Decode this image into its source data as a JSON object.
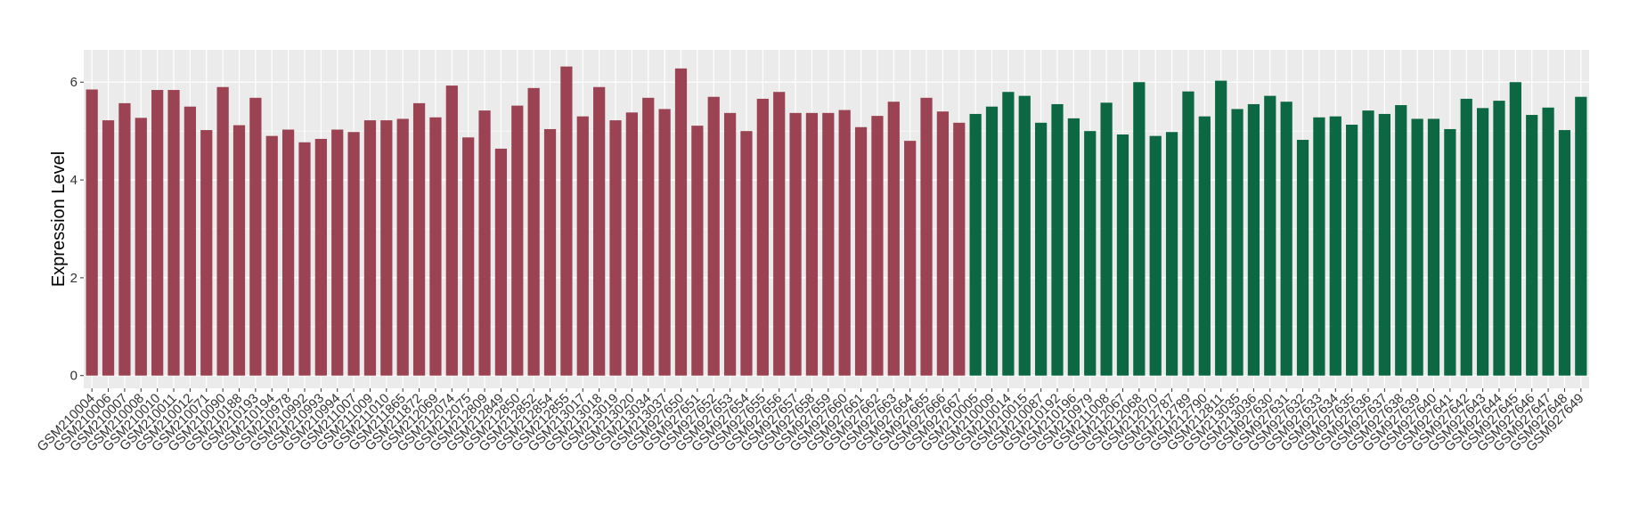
{
  "chart_data": {
    "type": "bar",
    "y_label": "Expression Level",
    "categories": [
      "GSM210004",
      "GSM210006",
      "GSM210007",
      "GSM210008",
      "GSM210010",
      "GSM210011",
      "GSM210012",
      "GSM210071",
      "GSM210090",
      "GSM210188",
      "GSM210193",
      "GSM210194",
      "GSM210978",
      "GSM210992",
      "GSM210993",
      "GSM210994",
      "GSM211007",
      "GSM211009",
      "GSM211010",
      "GSM211865",
      "GSM211872",
      "GSM212069",
      "GSM212074",
      "GSM212075",
      "GSM212809",
      "GSM212849",
      "GSM212850",
      "GSM212852",
      "GSM212854",
      "GSM212855",
      "GSM213017",
      "GSM213018",
      "GSM213019",
      "GSM213020",
      "GSM213034",
      "GSM213037",
      "GSM927650",
      "GSM927651",
      "GSM927652",
      "GSM927653",
      "GSM927654",
      "GSM927655",
      "GSM927656",
      "GSM927657",
      "GSM927658",
      "GSM927659",
      "GSM927660",
      "GSM927661",
      "GSM927662",
      "GSM927663",
      "GSM927664",
      "GSM927665",
      "GSM927666",
      "GSM927667",
      "GSM210005",
      "GSM210009",
      "GSM210014",
      "GSM210015",
      "GSM210087",
      "GSM210192",
      "GSM210196",
      "GSM210979",
      "GSM211008",
      "GSM212067",
      "GSM212068",
      "GSM212070",
      "GSM212787",
      "GSM212789",
      "GSM212790",
      "GSM212811",
      "GSM213035",
      "GSM213036",
      "GSM927630",
      "GSM927631",
      "GSM927632",
      "GSM927633",
      "GSM927634",
      "GSM927635",
      "GSM927636",
      "GSM927637",
      "GSM927638",
      "GSM927639",
      "GSM927640",
      "GSM927641",
      "GSM927642",
      "GSM927643",
      "GSM927644",
      "GSM927645",
      "GSM927646",
      "GSM927647",
      "GSM927648",
      "GSM927649"
    ],
    "values": [
      5.85,
      5.22,
      5.57,
      5.27,
      5.84,
      5.84,
      5.5,
      5.02,
      5.9,
      5.12,
      5.68,
      4.9,
      5.03,
      4.77,
      4.84,
      5.03,
      4.98,
      5.22,
      5.22,
      5.25,
      5.57,
      5.28,
      5.93,
      4.87,
      5.42,
      4.64,
      5.52,
      5.88,
      5.04,
      6.32,
      5.3,
      5.9,
      5.22,
      5.38,
      5.68,
      5.45,
      6.28,
      5.11,
      5.7,
      5.37,
      5.0,
      5.66,
      5.8,
      5.37,
      5.37,
      5.37,
      5.43,
      5.08,
      5.31,
      5.6,
      4.8,
      5.68,
      5.4,
      5.17,
      5.35,
      5.5,
      5.8,
      5.72,
      5.17,
      5.55,
      5.26,
      5.0,
      5.58,
      4.93,
      6.0,
      4.9,
      4.98,
      5.81,
      5.3,
      6.03,
      5.45,
      5.55,
      5.72,
      5.6,
      4.82,
      5.28,
      5.3,
      5.13,
      5.42,
      5.35,
      5.53,
      5.25,
      5.25,
      5.04,
      5.66,
      5.47,
      5.62,
      6.0,
      5.33,
      5.48,
      5.02,
      5.7
    ],
    "colors": [
      "#9b4353",
      "#9b4353",
      "#9b4353",
      "#9b4353",
      "#9b4353",
      "#9b4353",
      "#9b4353",
      "#9b4353",
      "#9b4353",
      "#9b4353",
      "#9b4353",
      "#9b4353",
      "#9b4353",
      "#9b4353",
      "#9b4353",
      "#9b4353",
      "#9b4353",
      "#9b4353",
      "#9b4353",
      "#9b4353",
      "#9b4353",
      "#9b4353",
      "#9b4353",
      "#9b4353",
      "#9b4353",
      "#9b4353",
      "#9b4353",
      "#9b4353",
      "#9b4353",
      "#9b4353",
      "#9b4353",
      "#9b4353",
      "#9b4353",
      "#9b4353",
      "#9b4353",
      "#9b4353",
      "#9b4353",
      "#9b4353",
      "#9b4353",
      "#9b4353",
      "#9b4353",
      "#9b4353",
      "#9b4353",
      "#9b4353",
      "#9b4353",
      "#9b4353",
      "#9b4353",
      "#9b4353",
      "#9b4353",
      "#9b4353",
      "#9b4353",
      "#9b4353",
      "#9b4353",
      "#9b4353",
      "#0b6842",
      "#0b6842",
      "#0b6842",
      "#0b6842",
      "#0b6842",
      "#0b6842",
      "#0b6842",
      "#0b6842",
      "#0b6842",
      "#0b6842",
      "#0b6842",
      "#0b6842",
      "#0b6842",
      "#0b6842",
      "#0b6842",
      "#0b6842",
      "#0b6842",
      "#0b6842",
      "#0b6842",
      "#0b6842",
      "#0b6842",
      "#0b6842",
      "#0b6842",
      "#0b6842",
      "#0b6842",
      "#0b6842",
      "#0b6842",
      "#0b6842",
      "#0b6842",
      "#0b6842",
      "#0b6842",
      "#0b6842",
      "#0b6842",
      "#0b6842",
      "#0b6842",
      "#0b6842",
      "#0b6842",
      "#0b6842"
    ],
    "ylim": [
      -0.26,
      6.66
    ],
    "yticks": [
      0,
      2,
      4,
      6
    ],
    "grid": true
  }
}
